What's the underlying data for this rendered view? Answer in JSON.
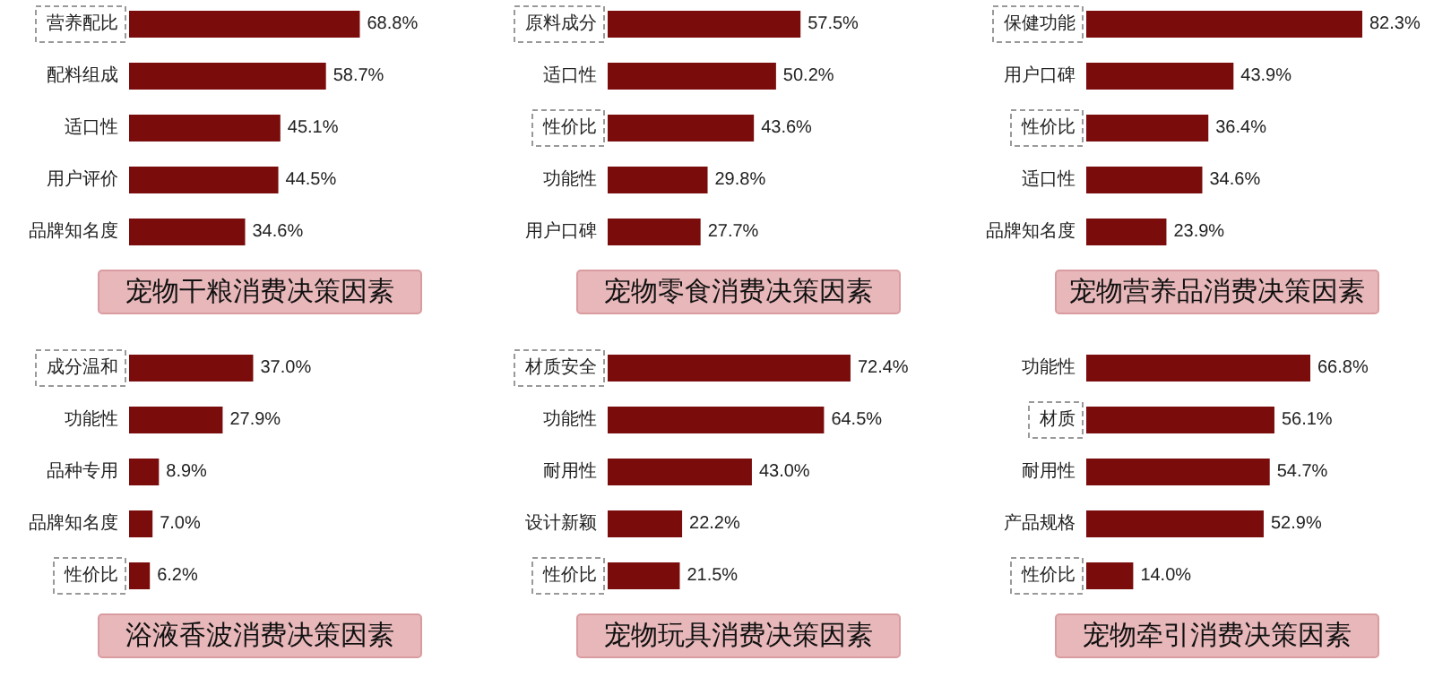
{
  "chart_data": [
    {
      "type": "bar",
      "orientation": "horizontal",
      "title": "宠物干粮消费决策因素",
      "categories": [
        "营养配比",
        "配料组成",
        "适口性",
        "用户评价",
        "品牌知名度"
      ],
      "values": [
        68.8,
        58.7,
        45.1,
        44.5,
        34.6
      ],
      "value_labels": [
        "68.8%",
        "58.7%",
        "45.1%",
        "44.5%",
        "34.6%"
      ],
      "color": "#7a0c0c"
    },
    {
      "type": "bar",
      "orientation": "horizontal",
      "title": "宠物零食消费决策因素",
      "categories": [
        "原料成分",
        "适口性",
        "性价比",
        "功能性",
        "用户口碑"
      ],
      "values": [
        57.5,
        50.2,
        43.6,
        29.8,
        27.7
      ],
      "value_labels": [
        "57.5%",
        "50.2%",
        "43.6%",
        "29.8%",
        "27.7%"
      ],
      "color": "#7a0c0c"
    },
    {
      "type": "bar",
      "orientation": "horizontal",
      "title": "宠物营养品消费决策因素",
      "categories": [
        "保健功能",
        "用户口碑",
        "性价比",
        "适口性",
        "品牌知名度"
      ],
      "values": [
        82.3,
        43.9,
        36.4,
        34.6,
        23.9
      ],
      "value_labels": [
        "82.3%",
        "43.9%",
        "36.4%",
        "34.6%",
        "23.9%"
      ],
      "color": "#7a0c0c"
    },
    {
      "type": "bar",
      "orientation": "horizontal",
      "title": "浴液香波消费决策因素",
      "categories": [
        "成分温和",
        "功能性",
        "品种专用",
        "品牌知名度",
        "性价比"
      ],
      "values": [
        37.0,
        27.9,
        8.9,
        7.0,
        6.2
      ],
      "value_labels": [
        "37.0%",
        "27.9%",
        "8.9%",
        "7.0%",
        "6.2%"
      ],
      "color": "#7a0c0c"
    },
    {
      "type": "bar",
      "orientation": "horizontal",
      "title": "宠物玩具消费决策因素",
      "categories": [
        "材质安全",
        "功能性",
        "耐用性",
        "设计新颖",
        "性价比"
      ],
      "values": [
        72.4,
        64.5,
        43.0,
        22.2,
        21.5
      ],
      "value_labels": [
        "72.4%",
        "64.5%",
        "43.0%",
        "22.2%",
        "21.5%"
      ],
      "color": "#7a0c0c"
    },
    {
      "type": "bar",
      "orientation": "horizontal",
      "title": "宠物牵引消费决策因素",
      "categories": [
        "功能性",
        "材质",
        "耐用性",
        "产品规格",
        "性价比"
      ],
      "values": [
        66.8,
        56.1,
        54.7,
        52.9,
        14.0
      ],
      "value_labels": [
        "66.8%",
        "56.1%",
        "54.7%",
        "52.9%",
        "14.0%"
      ],
      "color": "#7a0c0c"
    }
  ]
}
